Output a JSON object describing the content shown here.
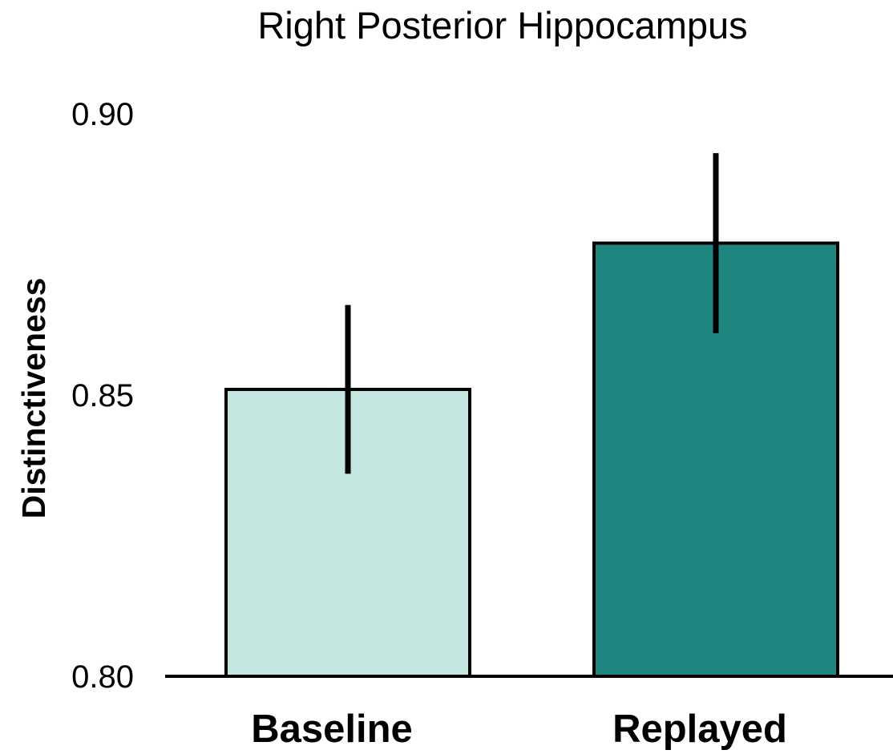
{
  "chart_data": {
    "type": "bar",
    "title": "Right Posterior Hippocampus",
    "ylabel": "Distinctiveness",
    "xlabel": "",
    "categories": [
      "Baseline",
      "Replayed"
    ],
    "values": [
      0.851,
      0.877
    ],
    "error_bars": [
      {
        "low": 0.836,
        "high": 0.866
      },
      {
        "low": 0.861,
        "high": 0.893
      }
    ],
    "ylim": [
      0.8,
      0.9
    ],
    "yticks": [
      "0.80",
      "0.85",
      "0.90"
    ],
    "colors": [
      "#c3e7e0",
      "#1f857f"
    ],
    "grid": false,
    "legend": "none"
  }
}
